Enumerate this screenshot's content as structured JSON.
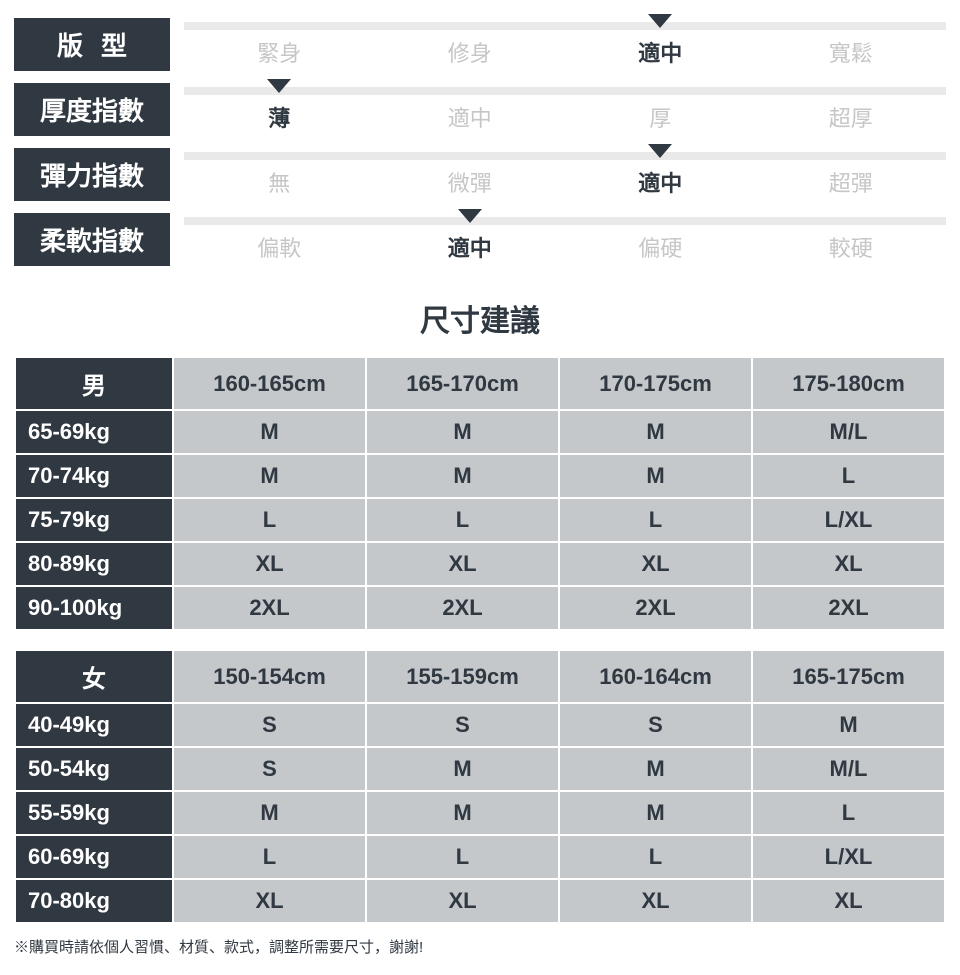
{
  "attributes": [
    {
      "label": "版型",
      "label_tight": false,
      "options": [
        "緊身",
        "修身",
        "適中",
        "寬鬆"
      ],
      "selected": 2
    },
    {
      "label": "厚度指數",
      "label_tight": true,
      "options": [
        "薄",
        "適中",
        "厚",
        "超厚"
      ],
      "selected": 0
    },
    {
      "label": "彈力指數",
      "label_tight": true,
      "options": [
        "無",
        "微彈",
        "適中",
        "超彈"
      ],
      "selected": 2
    },
    {
      "label": "柔軟指數",
      "label_tight": true,
      "options": [
        "偏軟",
        "適中",
        "偏硬",
        "較硬"
      ],
      "selected": 1
    }
  ],
  "heading": "尺寸建議",
  "male_table": {
    "corner": "男",
    "heights": [
      "160-165cm",
      "165-170cm",
      "170-175cm",
      "175-180cm"
    ],
    "rows": [
      {
        "w": "65-69kg",
        "s": [
          "M",
          "M",
          "M",
          "M/L"
        ]
      },
      {
        "w": "70-74kg",
        "s": [
          "M",
          "M",
          "M",
          "L"
        ]
      },
      {
        "w": "75-79kg",
        "s": [
          "L",
          "L",
          "L",
          "L/XL"
        ]
      },
      {
        "w": "80-89kg",
        "s": [
          "XL",
          "XL",
          "XL",
          "XL"
        ]
      },
      {
        "w": "90-100kg",
        "s": [
          "2XL",
          "2XL",
          "2XL",
          "2XL"
        ]
      }
    ]
  },
  "female_table": {
    "corner": "女",
    "heights": [
      "150-154cm",
      "155-159cm",
      "160-164cm",
      "165-175cm"
    ],
    "rows": [
      {
        "w": "40-49kg",
        "s": [
          "S",
          "S",
          "S",
          "M"
        ]
      },
      {
        "w": "50-54kg",
        "s": [
          "S",
          "M",
          "M",
          "M/L"
        ]
      },
      {
        "w": "55-59kg",
        "s": [
          "M",
          "M",
          "M",
          "L"
        ]
      },
      {
        "w": "60-69kg",
        "s": [
          "L",
          "L",
          "L",
          "L/XL"
        ]
      },
      {
        "w": "70-80kg",
        "s": [
          "XL",
          "XL",
          "XL",
          "XL"
        ]
      }
    ]
  },
  "note": "※購買時請依個人習慣、材質、款式，調整所需要尺寸，謝謝!",
  "colors": {
    "dark": "#303841",
    "cell": "#c5c8cb",
    "track": "#e9e9e9",
    "inactive": "#c6c6c6",
    "background": "#ffffff"
  }
}
